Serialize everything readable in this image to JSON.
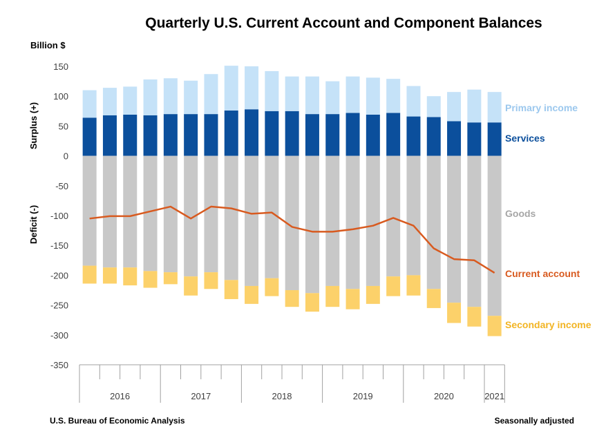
{
  "title": "Quarterly U.S. Current Account and Component Balances",
  "unit_label": "Billion $",
  "footer": {
    "source": "U.S. Bureau of Economic Analysis",
    "note": "Seasonally adjusted"
  },
  "chart_data": {
    "type": "bar",
    "stacked": true,
    "title": "Quarterly U.S. Current Account and Component Balances",
    "ylabel_positive": "Surplus (+)",
    "ylabel_negative": "Deficit (-)",
    "ylim": [
      -350,
      150
    ],
    "yticks": [
      150,
      100,
      50,
      0,
      -50,
      -100,
      -150,
      -200,
      -250,
      -300,
      -350
    ],
    "grid": false,
    "years": [
      "2016",
      "2017",
      "2018",
      "2019",
      "2020",
      "2021"
    ],
    "categories": [
      "2016 Q1",
      "2016 Q2",
      "2016 Q3",
      "2016 Q4",
      "2017 Q1",
      "2017 Q2",
      "2017 Q3",
      "2017 Q4",
      "2018 Q1",
      "2018 Q2",
      "2018 Q3",
      "2018 Q4",
      "2019 Q1",
      "2019 Q2",
      "2019 Q3",
      "2019 Q4",
      "2020 Q1",
      "2020 Q2",
      "2020 Q3",
      "2020 Q4",
      "2021 Q1"
    ],
    "series": [
      {
        "name": "Services",
        "color": "#0b4f9c",
        "label_color": "#0b4f9c",
        "values": [
          64,
          68,
          69,
          68,
          70,
          70,
          70,
          76,
          78,
          75,
          75,
          70,
          70,
          72,
          69,
          72,
          66,
          65,
          58,
          56,
          56
        ]
      },
      {
        "name": "Primary income",
        "color": "#c5e2f8",
        "label_color": "#9cc8ee",
        "values": [
          46,
          46,
          47,
          60,
          60,
          56,
          67,
          75,
          72,
          67,
          58,
          63,
          55,
          61,
          62,
          57,
          51,
          35,
          49,
          55,
          51
        ]
      },
      {
        "name": "Goods",
        "color": "#c8c8c8",
        "label_color": "#a6a6a6",
        "values": [
          -184,
          -187,
          -187,
          -193,
          -195,
          -202,
          -195,
          -208,
          -218,
          -205,
          -225,
          -230,
          -218,
          -223,
          -218,
          -202,
          -200,
          -223,
          -246,
          -253,
          -268
        ]
      },
      {
        "name": "Secondary income",
        "color": "#fcd16a",
        "label_color": "#f2b422",
        "values": [
          -30,
          -27,
          -30,
          -28,
          -20,
          -32,
          -28,
          -32,
          -30,
          -30,
          -28,
          -31,
          -35,
          -34,
          -30,
          -33,
          -34,
          -32,
          -34,
          -33,
          -34
        ]
      }
    ],
    "line": {
      "name": "Current account",
      "color": "#d85a1f",
      "values": [
        -105,
        -101,
        -101,
        -93,
        -85,
        -105,
        -85,
        -88,
        -97,
        -95,
        -119,
        -127,
        -127,
        -123,
        -117,
        -104,
        -117,
        -155,
        -173,
        -175,
        -196
      ]
    }
  }
}
